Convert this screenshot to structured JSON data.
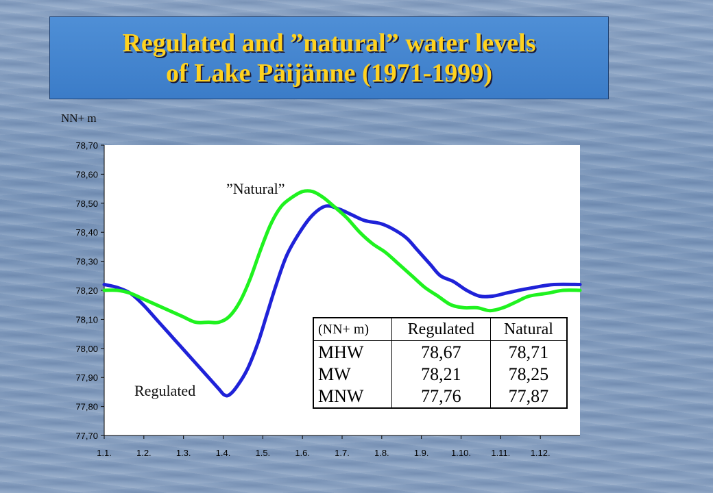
{
  "header": {
    "title_line1": "Regulated and ”natural” water levels",
    "title_line2": "of Lake Päijänne (1971-1999)"
  },
  "colors": {
    "regulated": "#1f22d8",
    "natural": "#1ff21f",
    "title_text": "#ffd21f",
    "title_bg": "#4289d2"
  },
  "chart_data": {
    "type": "line",
    "ylabel": "NN+ m",
    "ylim": [
      77.7,
      78.7
    ],
    "y_ticks": [
      "78,70",
      "78,60",
      "78,50",
      "78,40",
      "78,30",
      "78,20",
      "78,10",
      "78,00",
      "77,90",
      "77,80",
      "77,70"
    ],
    "x_ticks": [
      "1.1.",
      "1.2.",
      "1.3.",
      "1.4.",
      "1.5.",
      "1.6.",
      "1.7.",
      "1.8.",
      "1.9.",
      "1.10.",
      "1.11.",
      "1.12."
    ],
    "xlim_days": [
      0,
      365
    ],
    "grid": false,
    "series": [
      {
        "name": "Regulated",
        "color": "#1f22d8",
        "points": [
          [
            0,
            78.22
          ],
          [
            10,
            78.21
          ],
          [
            20,
            78.19
          ],
          [
            30,
            78.15
          ],
          [
            40,
            78.1
          ],
          [
            50,
            78.05
          ],
          [
            60,
            78.0
          ],
          [
            70,
            77.95
          ],
          [
            80,
            77.9
          ],
          [
            88,
            77.86
          ],
          [
            92,
            77.84
          ],
          [
            96,
            77.84
          ],
          [
            102,
            77.87
          ],
          [
            110,
            77.93
          ],
          [
            118,
            78.02
          ],
          [
            125,
            78.12
          ],
          [
            132,
            78.22
          ],
          [
            140,
            78.32
          ],
          [
            150,
            78.4
          ],
          [
            160,
            78.46
          ],
          [
            170,
            78.49
          ],
          [
            180,
            78.48
          ],
          [
            190,
            78.46
          ],
          [
            200,
            78.44
          ],
          [
            212,
            78.43
          ],
          [
            222,
            78.41
          ],
          [
            232,
            78.38
          ],
          [
            240,
            78.34
          ],
          [
            250,
            78.29
          ],
          [
            258,
            78.25
          ],
          [
            268,
            78.23
          ],
          [
            278,
            78.2
          ],
          [
            288,
            78.18
          ],
          [
            298,
            78.18
          ],
          [
            308,
            78.19
          ],
          [
            318,
            78.2
          ],
          [
            330,
            78.21
          ],
          [
            345,
            78.22
          ],
          [
            365,
            78.22
          ]
        ]
      },
      {
        "name": "”Natural”",
        "color": "#1ff21f",
        "points": [
          [
            0,
            78.2
          ],
          [
            10,
            78.2
          ],
          [
            20,
            78.19
          ],
          [
            30,
            78.17
          ],
          [
            40,
            78.15
          ],
          [
            50,
            78.13
          ],
          [
            60,
            78.11
          ],
          [
            70,
            78.09
          ],
          [
            80,
            78.09
          ],
          [
            88,
            78.09
          ],
          [
            96,
            78.11
          ],
          [
            104,
            78.16
          ],
          [
            112,
            78.24
          ],
          [
            120,
            78.34
          ],
          [
            128,
            78.43
          ],
          [
            136,
            78.49
          ],
          [
            144,
            78.52
          ],
          [
            152,
            78.54
          ],
          [
            160,
            78.54
          ],
          [
            168,
            78.52
          ],
          [
            176,
            78.49
          ],
          [
            186,
            78.45
          ],
          [
            196,
            78.4
          ],
          [
            206,
            78.36
          ],
          [
            216,
            78.33
          ],
          [
            226,
            78.29
          ],
          [
            236,
            78.25
          ],
          [
            246,
            78.21
          ],
          [
            256,
            78.18
          ],
          [
            266,
            78.15
          ],
          [
            276,
            78.14
          ],
          [
            286,
            78.14
          ],
          [
            296,
            78.13
          ],
          [
            306,
            78.14
          ],
          [
            316,
            78.16
          ],
          [
            326,
            78.18
          ],
          [
            340,
            78.19
          ],
          [
            352,
            78.2
          ],
          [
            365,
            78.2
          ]
        ]
      }
    ]
  },
  "annotations": {
    "natural_label": "”Natural”",
    "regulated_label": "Regulated"
  },
  "stats_table": {
    "header": [
      "(NN+ m)",
      "Regulated",
      "Natural"
    ],
    "rows": [
      {
        "label": "MHW",
        "regulated": "78,67",
        "natural": "78,71"
      },
      {
        "label": "MW",
        "regulated": "78,21",
        "natural": "78,25"
      },
      {
        "label": "MNW",
        "regulated": "77,76",
        "natural": "77,87"
      }
    ]
  }
}
